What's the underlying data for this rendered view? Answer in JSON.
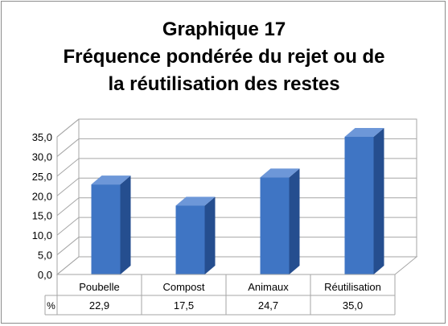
{
  "chart_data": {
    "type": "bar",
    "title_lines": [
      "Graphique 17",
      "Fréquence pondérée du rejet ou de",
      "la réutilisation des restes"
    ],
    "categories": [
      "Poubelle",
      "Compost",
      "Animaux",
      "Réutilisation"
    ],
    "values": [
      22.9,
      17.5,
      24.7,
      35.0
    ],
    "data_table_unit": "%",
    "data_table_values": [
      "22,9",
      "17,5",
      "24,7",
      "35,0"
    ],
    "y_ticks": [
      "0,0",
      "5,0",
      "10,0",
      "15,0",
      "20,0",
      "25,0",
      "30,0",
      "35,0"
    ],
    "ylim": [
      0,
      35
    ],
    "grid": true,
    "legend": "none",
    "three_d": true,
    "bar_color": "#3f75c4",
    "bar_side_color": "#254e8f",
    "bar_top_color": "#6d97d8"
  }
}
